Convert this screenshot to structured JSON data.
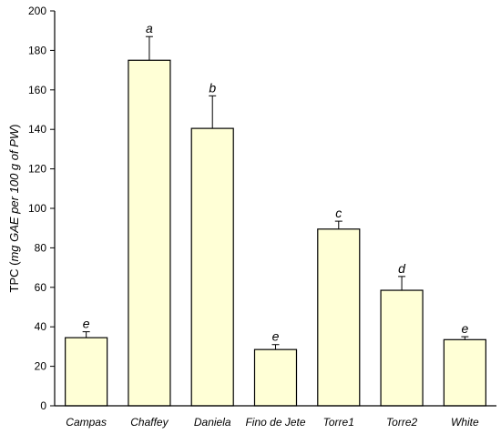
{
  "chart_data": {
    "type": "bar",
    "title": "",
    "xlabel": "",
    "ylabel": "TPC (mg GAE per 100 g of PW)",
    "ylabel_parts": {
      "prefix": "TPC (",
      "italic": "mg GAE per 100 g of PW",
      "suffix": ")"
    },
    "ylim": [
      0,
      200
    ],
    "yticks": [
      0,
      20,
      40,
      60,
      80,
      100,
      120,
      140,
      160,
      180,
      200
    ],
    "grid": false,
    "categories": [
      "Campas",
      "Chaffey",
      "Daniela",
      "Fino de Jete",
      "Torre1",
      "Torre2",
      "White"
    ],
    "values": [
      34.5,
      175,
      140.5,
      28.5,
      89.5,
      58.5,
      33.5
    ],
    "errors": [
      3,
      12,
      16.5,
      2.5,
      4,
      7,
      1.5
    ],
    "significance_letters": [
      "e",
      "a",
      "b",
      "e",
      "c",
      "d",
      "e"
    ],
    "bar_color": "#ffffd6",
    "bar_edge_color": "#000000"
  }
}
